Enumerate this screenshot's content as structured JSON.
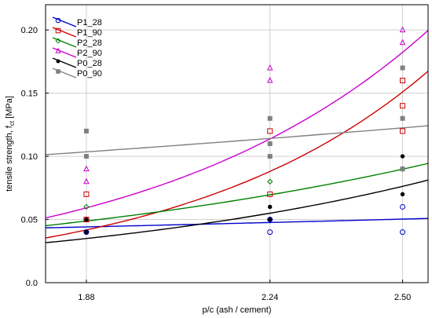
{
  "chart_data": {
    "type": "scatter",
    "xlabel": "p/c (ash / cement)",
    "ylabel": "tensile strength, f",
    "ylabel_sub": "ct",
    "ylabel_unit": " [MPa]",
    "x_ticks": [
      1.88,
      2.24,
      2.5
    ],
    "x_tick_labels": [
      "1.88",
      "2.24",
      "2.50"
    ],
    "y_ticks": [
      0.0,
      0.05,
      0.1,
      0.15,
      0.2
    ],
    "y_tick_labels": [
      "0.0",
      "0.05",
      "0.10",
      "0.15",
      "0.20"
    ],
    "xlim": [
      1.8,
      2.55
    ],
    "ylim": [
      0.0,
      0.22
    ],
    "grid": true,
    "legend_position": "top-left",
    "series": [
      {
        "name": "P1_28",
        "color": "#0000cc",
        "marker": "open-circle",
        "points": [
          [
            1.88,
            0.04
          ],
          [
            2.24,
            0.04
          ],
          [
            2.24,
            0.05
          ],
          [
            2.5,
            0.04
          ],
          [
            2.5,
            0.06
          ]
        ],
        "fit": {
          "type": "exponential",
          "a": 0.02964,
          "b": 0.2117
        }
      },
      {
        "name": "P1_90",
        "color": "#cc0000",
        "marker": "open-square",
        "points": [
          [
            1.88,
            0.05
          ],
          [
            1.88,
            0.07
          ],
          [
            2.24,
            0.07
          ],
          [
            2.24,
            0.12
          ],
          [
            2.5,
            0.12
          ],
          [
            2.5,
            0.14
          ],
          [
            2.5,
            0.16
          ]
        ],
        "fit": {
          "type": "exponential",
          "a": 0.000848,
          "b": 2.0727
        }
      },
      {
        "name": "P2_28",
        "color": "#008000",
        "marker": "open-diamond",
        "points": [
          [
            1.88,
            0.06
          ],
          [
            2.24,
            0.08
          ],
          [
            2.5,
            0.09
          ]
        ],
        "fit": {
          "type": "exponential",
          "a": 0.00765,
          "b": 0.9853
        }
      },
      {
        "name": "P2_90",
        "color": "#cc00cc",
        "marker": "open-triangle",
        "points": [
          [
            1.88,
            0.08
          ],
          [
            1.88,
            0.09
          ],
          [
            2.24,
            0.16
          ],
          [
            2.24,
            0.17
          ],
          [
            2.5,
            0.19
          ],
          [
            2.5,
            0.2
          ]
        ],
        "fit": {
          "type": "exponential",
          "a": 0.001955,
          "b": 1.8142
        }
      },
      {
        "name": "P0_28",
        "color": "#000000",
        "marker": "filled-circle",
        "points": [
          [
            1.88,
            0.04
          ],
          [
            1.88,
            0.05
          ],
          [
            2.24,
            0.05
          ],
          [
            2.24,
            0.06
          ],
          [
            2.5,
            0.07
          ],
          [
            2.5,
            0.1
          ]
        ],
        "fit": {
          "type": "exponential",
          "a": 0.003285,
          "b": 1.2579
        }
      },
      {
        "name": "P0_90",
        "color": "#808080",
        "marker": "filled-square",
        "points": [
          [
            1.88,
            0.1
          ],
          [
            1.88,
            0.12
          ],
          [
            2.24,
            0.1
          ],
          [
            2.24,
            0.11
          ],
          [
            2.24,
            0.13
          ],
          [
            2.5,
            0.09
          ],
          [
            2.5,
            0.13
          ],
          [
            2.5,
            0.17
          ]
        ],
        "fit": {
          "type": "exponential",
          "a": 0.06212,
          "b": 0.2717
        }
      }
    ]
  }
}
